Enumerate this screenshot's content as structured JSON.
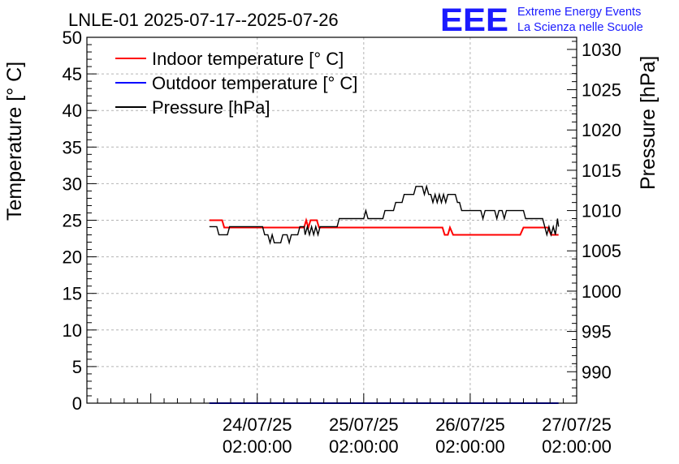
{
  "chart_data": {
    "type": "line",
    "title": "LNLE-01 2025-07-17--2025-07-26",
    "logo": {
      "text": "EEE",
      "line1": "Extreme Energy Events",
      "line2": "La Scienza nelle Scuole",
      "color": "#1a1aff"
    },
    "ylabel_left": "Temperature [° C]",
    "ylabel_right": "Pressure [hPa]",
    "ylim_left": [
      0,
      50
    ],
    "yticks_left": [
      "0",
      "5",
      "10",
      "15",
      "20",
      "25",
      "30",
      "35",
      "40",
      "45",
      "50"
    ],
    "ylim_right": [
      986.1,
      1031.5
    ],
    "yticks_right": [
      "990",
      "995",
      "1000",
      "1005",
      "1010",
      "1015",
      "1020",
      "1025",
      "1030"
    ],
    "x_axis": {
      "unit": "days",
      "xlim": [
        -1.6,
        3.0
      ]
    },
    "xticks": [
      {
        "x": 0,
        "line1": "24/07/25",
        "line2": "02:00:00"
      },
      {
        "x": 1,
        "line1": "25/07/25",
        "line2": "02:00:00"
      },
      {
        "x": 2,
        "line1": "26/07/25",
        "line2": "02:00:00"
      },
      {
        "x": 3,
        "line1": "27/07/25",
        "line2": "02:00:00"
      }
    ],
    "grid": true,
    "legend": {
      "placement": "top-left"
    },
    "series": [
      {
        "name": "Indoor temperature [° C]",
        "color": "#ff0000",
        "axis": "left",
        "points": [
          [
            -0.45,
            25
          ],
          [
            -0.33,
            25
          ],
          [
            -0.31,
            24
          ],
          [
            0.44,
            24
          ],
          [
            0.46,
            25
          ],
          [
            0.48,
            24
          ],
          [
            0.5,
            25
          ],
          [
            0.56,
            25
          ],
          [
            0.58,
            24
          ],
          [
            1.74,
            24
          ],
          [
            1.76,
            23
          ],
          [
            1.79,
            23
          ],
          [
            1.81,
            24
          ],
          [
            1.84,
            23
          ],
          [
            2.47,
            23
          ],
          [
            2.5,
            24
          ],
          [
            2.73,
            24
          ],
          [
            2.76,
            23
          ],
          [
            2.83,
            23
          ]
        ]
      },
      {
        "name": "Outdoor temperature [° C]",
        "color": "#0000ff",
        "axis": "left",
        "points": [
          [
            -0.45,
            0
          ],
          [
            2.83,
            0
          ]
        ]
      },
      {
        "name": "Pressure [hPa]",
        "color": "#000000",
        "axis": "right",
        "points": [
          [
            -0.45,
            1008
          ],
          [
            -0.38,
            1008
          ],
          [
            -0.36,
            1007
          ],
          [
            -0.28,
            1007
          ],
          [
            -0.26,
            1008
          ],
          [
            0.05,
            1008
          ],
          [
            0.07,
            1007
          ],
          [
            0.1,
            1007
          ],
          [
            0.12,
            1006
          ],
          [
            0.14,
            1007
          ],
          [
            0.16,
            1006
          ],
          [
            0.22,
            1006
          ],
          [
            0.24,
            1007
          ],
          [
            0.28,
            1007
          ],
          [
            0.3,
            1006
          ],
          [
            0.32,
            1007
          ],
          [
            0.38,
            1007
          ],
          [
            0.4,
            1008
          ],
          [
            0.44,
            1008
          ],
          [
            0.45,
            1007
          ],
          [
            0.47,
            1008
          ],
          [
            0.49,
            1007
          ],
          [
            0.51,
            1008
          ],
          [
            0.53,
            1007
          ],
          [
            0.55,
            1008
          ],
          [
            0.57,
            1007
          ],
          [
            0.59,
            1008
          ],
          [
            0.75,
            1008
          ],
          [
            0.77,
            1009
          ],
          [
            1.0,
            1009
          ],
          [
            1.02,
            1010
          ],
          [
            1.04,
            1009
          ],
          [
            1.18,
            1009
          ],
          [
            1.2,
            1010
          ],
          [
            1.28,
            1010
          ],
          [
            1.3,
            1011
          ],
          [
            1.36,
            1011
          ],
          [
            1.38,
            1012
          ],
          [
            1.47,
            1012
          ],
          [
            1.49,
            1013
          ],
          [
            1.55,
            1013
          ],
          [
            1.57,
            1012
          ],
          [
            1.59,
            1013
          ],
          [
            1.61,
            1012
          ],
          [
            1.63,
            1012
          ],
          [
            1.65,
            1011
          ],
          [
            1.67,
            1012
          ],
          [
            1.69,
            1011
          ],
          [
            1.71,
            1012
          ],
          [
            1.73,
            1011
          ],
          [
            1.75,
            1012
          ],
          [
            1.77,
            1011
          ],
          [
            1.79,
            1012
          ],
          [
            1.86,
            1012
          ],
          [
            1.88,
            1011
          ],
          [
            1.9,
            1011
          ],
          [
            1.92,
            1010
          ],
          [
            2.1,
            1010
          ],
          [
            2.12,
            1009
          ],
          [
            2.14,
            1010
          ],
          [
            2.23,
            1010
          ],
          [
            2.25,
            1009
          ],
          [
            2.27,
            1010
          ],
          [
            2.3,
            1010
          ],
          [
            2.32,
            1009
          ],
          [
            2.34,
            1010
          ],
          [
            2.5,
            1010
          ],
          [
            2.52,
            1009
          ],
          [
            2.68,
            1009
          ],
          [
            2.7,
            1008
          ],
          [
            2.72,
            1007
          ],
          [
            2.74,
            1008
          ],
          [
            2.76,
            1007
          ],
          [
            2.78,
            1008
          ],
          [
            2.8,
            1007
          ],
          [
            2.82,
            1009
          ],
          [
            2.83,
            1008
          ]
        ]
      }
    ]
  }
}
